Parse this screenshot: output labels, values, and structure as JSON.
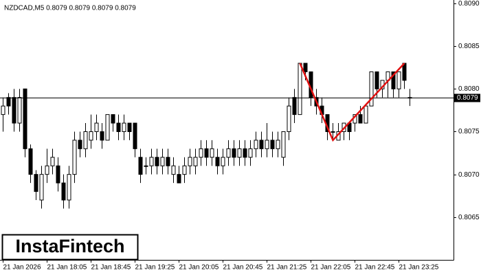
{
  "chart_data": {
    "type": "candlestick",
    "title": "NZDCAD,M5  0.8079 0.8079 0.8079 0.8079",
    "logo": "InstaFintech",
    "categories": [
      "21 Jan 2026",
      null,
      null,
      null,
      null,
      null,
      null,
      null,
      "21 Jan 18:05",
      null,
      null,
      null,
      null,
      null,
      null,
      null,
      "21 Jan 18:45",
      null,
      null,
      null,
      null,
      null,
      null,
      null,
      "21 Jan 19:25",
      null,
      null,
      null,
      null,
      null,
      null,
      null,
      "21 Jan 20:05",
      null,
      null,
      null,
      null,
      null,
      null,
      null,
      "21 Jan 20:45",
      null,
      null,
      null,
      null,
      null,
      null,
      null,
      "21 Jan 21:25",
      null,
      null,
      null,
      null,
      null,
      null,
      null,
      "21 Jan 22:05",
      null,
      null,
      null,
      null,
      null,
      null,
      null,
      "21 Jan 22:45",
      null,
      null,
      null,
      null,
      null,
      null,
      null,
      "21 Jan 23:25",
      null,
      null
    ],
    "open": [
      0.8077,
      0.8079,
      0.8079,
      0.8076,
      0.808,
      0.8073,
      0.807,
      0.8067,
      0.807,
      0.8071,
      0.8071,
      0.8069,
      0.8067,
      0.807,
      0.8074,
      0.8073,
      0.8074,
      0.8075,
      0.8075,
      0.8074,
      0.8077,
      0.8076,
      0.8075,
      0.8076,
      0.8076,
      0.8072,
      0.8071,
      0.8071,
      0.8072,
      0.8071,
      0.8072,
      0.807,
      0.807,
      0.807,
      0.8071,
      0.8071,
      0.8072,
      0.8073,
      0.8072,
      0.8072,
      0.8071,
      0.8072,
      0.8073,
      0.8072,
      0.8073,
      0.8072,
      0.8073,
      0.8074,
      0.8073,
      0.8074,
      0.8073,
      0.8072,
      0.8075,
      0.8079,
      0.8077,
      0.8083,
      0.8082,
      0.8079,
      0.8078,
      0.8077,
      0.8075,
      0.8074,
      0.8075,
      0.8076,
      0.8076,
      0.8077,
      0.8076,
      0.8078,
      0.8082,
      0.808,
      0.8081,
      0.8082,
      0.808,
      0.8083,
      0.8079
    ],
    "high": [
      0.8079,
      0.80795,
      0.808,
      0.808,
      0.808,
      0.80735,
      0.80705,
      0.8071,
      0.8073,
      0.8073,
      0.8072,
      0.807,
      0.8071,
      0.8075,
      0.8075,
      0.8076,
      0.8077,
      0.8077,
      0.8076,
      0.8077,
      0.8077,
      0.8077,
      0.8077,
      0.8076,
      0.8076,
      0.8073,
      0.8072,
      0.8073,
      0.8073,
      0.8073,
      0.8073,
      0.8072,
      0.8071,
      0.8072,
      0.8073,
      0.8073,
      0.8074,
      0.8074,
      0.8074,
      0.8073,
      0.8073,
      0.8074,
      0.8074,
      0.8074,
      0.8074,
      0.8074,
      0.8075,
      0.8075,
      0.8076,
      0.8075,
      0.8075,
      0.8075,
      0.8079,
      0.808,
      0.8083,
      0.8083,
      0.8082,
      0.808,
      0.8079,
      0.8077,
      0.8076,
      0.8076,
      0.8076,
      0.8076,
      0.8077,
      0.8078,
      0.8078,
      0.8082,
      0.8082,
      0.8081,
      0.8082,
      0.8082,
      0.8082,
      0.8083,
      0.808
    ],
    "low": [
      0.8075,
      0.8077,
      0.8075,
      0.8075,
      0.8072,
      0.8069,
      0.8067,
      0.8066,
      0.8069,
      0.807,
      0.8068,
      0.8066,
      0.8066,
      0.8069,
      0.8072,
      0.8072,
      0.8073,
      0.8074,
      0.8073,
      0.8074,
      0.8075,
      0.8074,
      0.8074,
      0.8074,
      0.8072,
      0.8069,
      0.807,
      0.807,
      0.807,
      0.807,
      0.807,
      0.8069,
      0.8069,
      0.8069,
      0.807,
      0.807,
      0.8071,
      0.8071,
      0.8071,
      0.807,
      0.807,
      0.8071,
      0.8071,
      0.8071,
      0.8071,
      0.8071,
      0.8072,
      0.8072,
      0.8072,
      0.8072,
      0.8072,
      0.8071,
      0.8074,
      0.8076,
      0.8077,
      0.8081,
      0.8078,
      0.8077,
      0.8076,
      0.8074,
      0.8074,
      0.8074,
      0.8074,
      0.8074,
      0.8075,
      0.8076,
      0.8076,
      0.8078,
      0.8079,
      0.8079,
      0.8079,
      0.8079,
      0.8079,
      0.808,
      0.8078
    ],
    "close": [
      0.8078,
      0.8078,
      0.8076,
      0.8079,
      0.8073,
      0.807,
      0.8068,
      0.807,
      0.8071,
      0.8072,
      0.8069,
      0.8067,
      0.807,
      0.8074,
      0.8073,
      0.8075,
      0.8075,
      0.8076,
      0.8074,
      0.8077,
      0.8076,
      0.8075,
      0.8076,
      0.8075,
      0.8073,
      0.807,
      0.8071,
      0.8072,
      0.8071,
      0.8072,
      0.8071,
      0.8071,
      0.8069,
      0.8071,
      0.8072,
      0.8072,
      0.8073,
      0.8072,
      0.8073,
      0.8071,
      0.8072,
      0.8073,
      0.8072,
      0.8073,
      0.8072,
      0.8073,
      0.8074,
      0.8073,
      0.8074,
      0.8073,
      0.8074,
      0.8075,
      0.8078,
      0.8077,
      0.8083,
      0.8082,
      0.8079,
      0.8078,
      0.8077,
      0.8075,
      0.8075,
      0.8075,
      0.8076,
      0.8075,
      0.8077,
      0.8076,
      0.8078,
      0.8082,
      0.808,
      0.8081,
      0.8082,
      0.808,
      0.8082,
      0.8081,
      0.8079
    ],
    "ylim": [
      0.806,
      0.80904
    ],
    "yticks": [
      0.8065,
      {
        "value": 0.807,
        "label": "0.8070"
      },
      0.8075,
      {
        "value": 0.808,
        "label": "0.8080"
      },
      0.8085,
      {
        "value": 0.809,
        "label": "0.8090"
      }
    ],
    "current_price": 0.8079,
    "up_color": "#ffffff",
    "down_color": "#000000",
    "pattern": {
      "color": "#e01010",
      "at": [
        54,
        60,
        73
      ],
      "values": [
        0.8083,
        0.8074,
        0.8083
      ]
    }
  }
}
